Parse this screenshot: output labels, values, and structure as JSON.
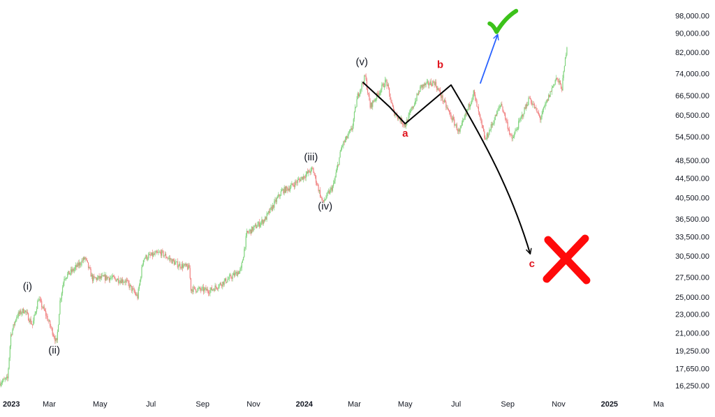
{
  "chart_data": {
    "type": "candlestick",
    "colors": {
      "up": "#26a69a",
      "down": "#ef5350",
      "up_light": "#7fd37c",
      "down_light": "#f08080",
      "path": "#000000",
      "bull_arrow": "#2962ff",
      "label_red": "#e0141e",
      "check": "#3cc21a",
      "cross": "#ff0a0a"
    },
    "y_axis": {
      "scale": "log",
      "range": [
        15500,
        104000
      ],
      "ticks": [
        "16,250.00",
        "17,650.00",
        "19,250.00",
        "21,000.00",
        "23,000.00",
        "25,000.00",
        "27,500.00",
        "30,500.00",
        "33,500.00",
        "36,500.00",
        "40,500.00",
        "44,500.00",
        "48,500.00",
        "54,500.00",
        "60,500.00",
        "66,500.00",
        "74,000.00",
        "82,000.00",
        "90,000.00",
        "98,000.00"
      ]
    },
    "x_axis": {
      "range": [
        "2023-01-01",
        "2025-03-15"
      ],
      "ticks": [
        {
          "date": "2023-01-01",
          "label": "2023",
          "bold": true
        },
        {
          "date": "2023-03-01",
          "label": "Mar",
          "bold": false
        },
        {
          "date": "2023-05-01",
          "label": "May",
          "bold": false
        },
        {
          "date": "2023-07-01",
          "label": "Jul",
          "bold": false
        },
        {
          "date": "2023-09-01",
          "label": "Sep",
          "bold": false
        },
        {
          "date": "2023-11-01",
          "label": "Nov",
          "bold": false
        },
        {
          "date": "2024-01-01",
          "label": "2024",
          "bold": true
        },
        {
          "date": "2024-03-01",
          "label": "Mar",
          "bold": false
        },
        {
          "date": "2024-05-01",
          "label": "May",
          "bold": false
        },
        {
          "date": "2024-07-01",
          "label": "Jul",
          "bold": false
        },
        {
          "date": "2024-09-01",
          "label": "Sep",
          "bold": false
        },
        {
          "date": "2024-11-01",
          "label": "Nov",
          "bold": false
        },
        {
          "date": "2025-01-01",
          "label": "2025",
          "bold": true
        },
        {
          "date": "2025-03-01",
          "label": "Ma",
          "bold": false
        }
      ]
    },
    "price_anchors": [
      [
        "2023-01-01",
        16500
      ],
      [
        "2023-01-10",
        16800
      ],
      [
        "2023-01-14",
        20800
      ],
      [
        "2023-01-21",
        22800
      ],
      [
        "2023-01-30",
        23500
      ],
      [
        "2023-02-09",
        21800
      ],
      [
        "2023-02-16",
        24800
      ],
      [
        "2023-02-24",
        23200
      ],
      [
        "2023-03-10",
        20000
      ],
      [
        "2023-03-14",
        24500
      ],
      [
        "2023-03-19",
        27500
      ],
      [
        "2023-03-30",
        28500
      ],
      [
        "2023-04-13",
        30200
      ],
      [
        "2023-04-22",
        27300
      ],
      [
        "2023-05-10",
        27500
      ],
      [
        "2023-06-01",
        27000
      ],
      [
        "2023-06-15",
        25000
      ],
      [
        "2023-06-22",
        30200
      ],
      [
        "2023-07-13",
        31000
      ],
      [
        "2023-08-01",
        29300
      ],
      [
        "2023-08-16",
        28800
      ],
      [
        "2023-08-18",
        26000
      ],
      [
        "2023-09-10",
        25800
      ],
      [
        "2023-10-01",
        27200
      ],
      [
        "2023-10-17",
        28500
      ],
      [
        "2023-10-24",
        34000
      ],
      [
        "2023-11-15",
        36500
      ],
      [
        "2023-12-05",
        41800
      ],
      [
        "2023-12-14",
        42500
      ],
      [
        "2024-01-11",
        46500
      ],
      [
        "2024-01-23",
        39500
      ],
      [
        "2024-02-05",
        43000
      ],
      [
        "2024-02-15",
        52000
      ],
      [
        "2024-02-27",
        56500
      ],
      [
        "2024-03-05",
        66500
      ],
      [
        "2024-03-14",
        73000
      ],
      [
        "2024-03-20",
        63000
      ],
      [
        "2024-04-08",
        71500
      ],
      [
        "2024-04-17",
        61500
      ],
      [
        "2024-05-01",
        57500
      ],
      [
        "2024-05-20",
        69500
      ],
      [
        "2024-06-05",
        71000
      ],
      [
        "2024-06-24",
        60500
      ],
      [
        "2024-07-05",
        55500
      ],
      [
        "2024-07-22",
        67500
      ],
      [
        "2024-08-05",
        53500
      ],
      [
        "2024-08-24",
        64000
      ],
      [
        "2024-09-06",
        53500
      ],
      [
        "2024-09-27",
        65800
      ],
      [
        "2024-10-10",
        59500
      ],
      [
        "2024-10-29",
        72500
      ],
      [
        "2024-11-05",
        69000
      ],
      [
        "2024-11-11",
        85000
      ]
    ],
    "wave_labels": [
      {
        "text": "(i)",
        "date": "2023-02-03",
        "price": 25900
      },
      {
        "text": "(ii)",
        "date": "2023-03-07",
        "price": 19000
      },
      {
        "text": "(iii)",
        "date": "2024-01-09",
        "price": 48500
      },
      {
        "text": "(iv)",
        "date": "2024-01-26",
        "price": 38200
      },
      {
        "text": "(v)",
        "date": "2024-03-10",
        "price": 77000
      }
    ],
    "correction_labels": [
      {
        "text": "a",
        "date": "2024-05-01",
        "price": 54500
      },
      {
        "text": "b",
        "date": "2024-06-12",
        "price": 76000
      },
      {
        "text": "c",
        "date": "2024-09-30",
        "price": 28900
      }
    ],
    "bear_path": [
      [
        "2024-03-11",
        71000
      ],
      [
        "2024-04-12",
        63000
      ],
      [
        "2024-05-01",
        58000
      ],
      [
        "2024-06-25",
        70000
      ],
      [
        "2024-08-05",
        53000
      ],
      [
        "2024-09-06",
        41500
      ],
      [
        "2024-09-28",
        30800
      ]
    ],
    "bull_arrow": {
      "from": [
        "2024-07-30",
        70500
      ],
      "to": [
        "2024-08-20",
        89500
      ]
    },
    "check_mark": {
      "date": "2024-08-22",
      "price": 95000
    },
    "cross_mark": {
      "date": "2024-11-11",
      "price": 30000
    }
  }
}
